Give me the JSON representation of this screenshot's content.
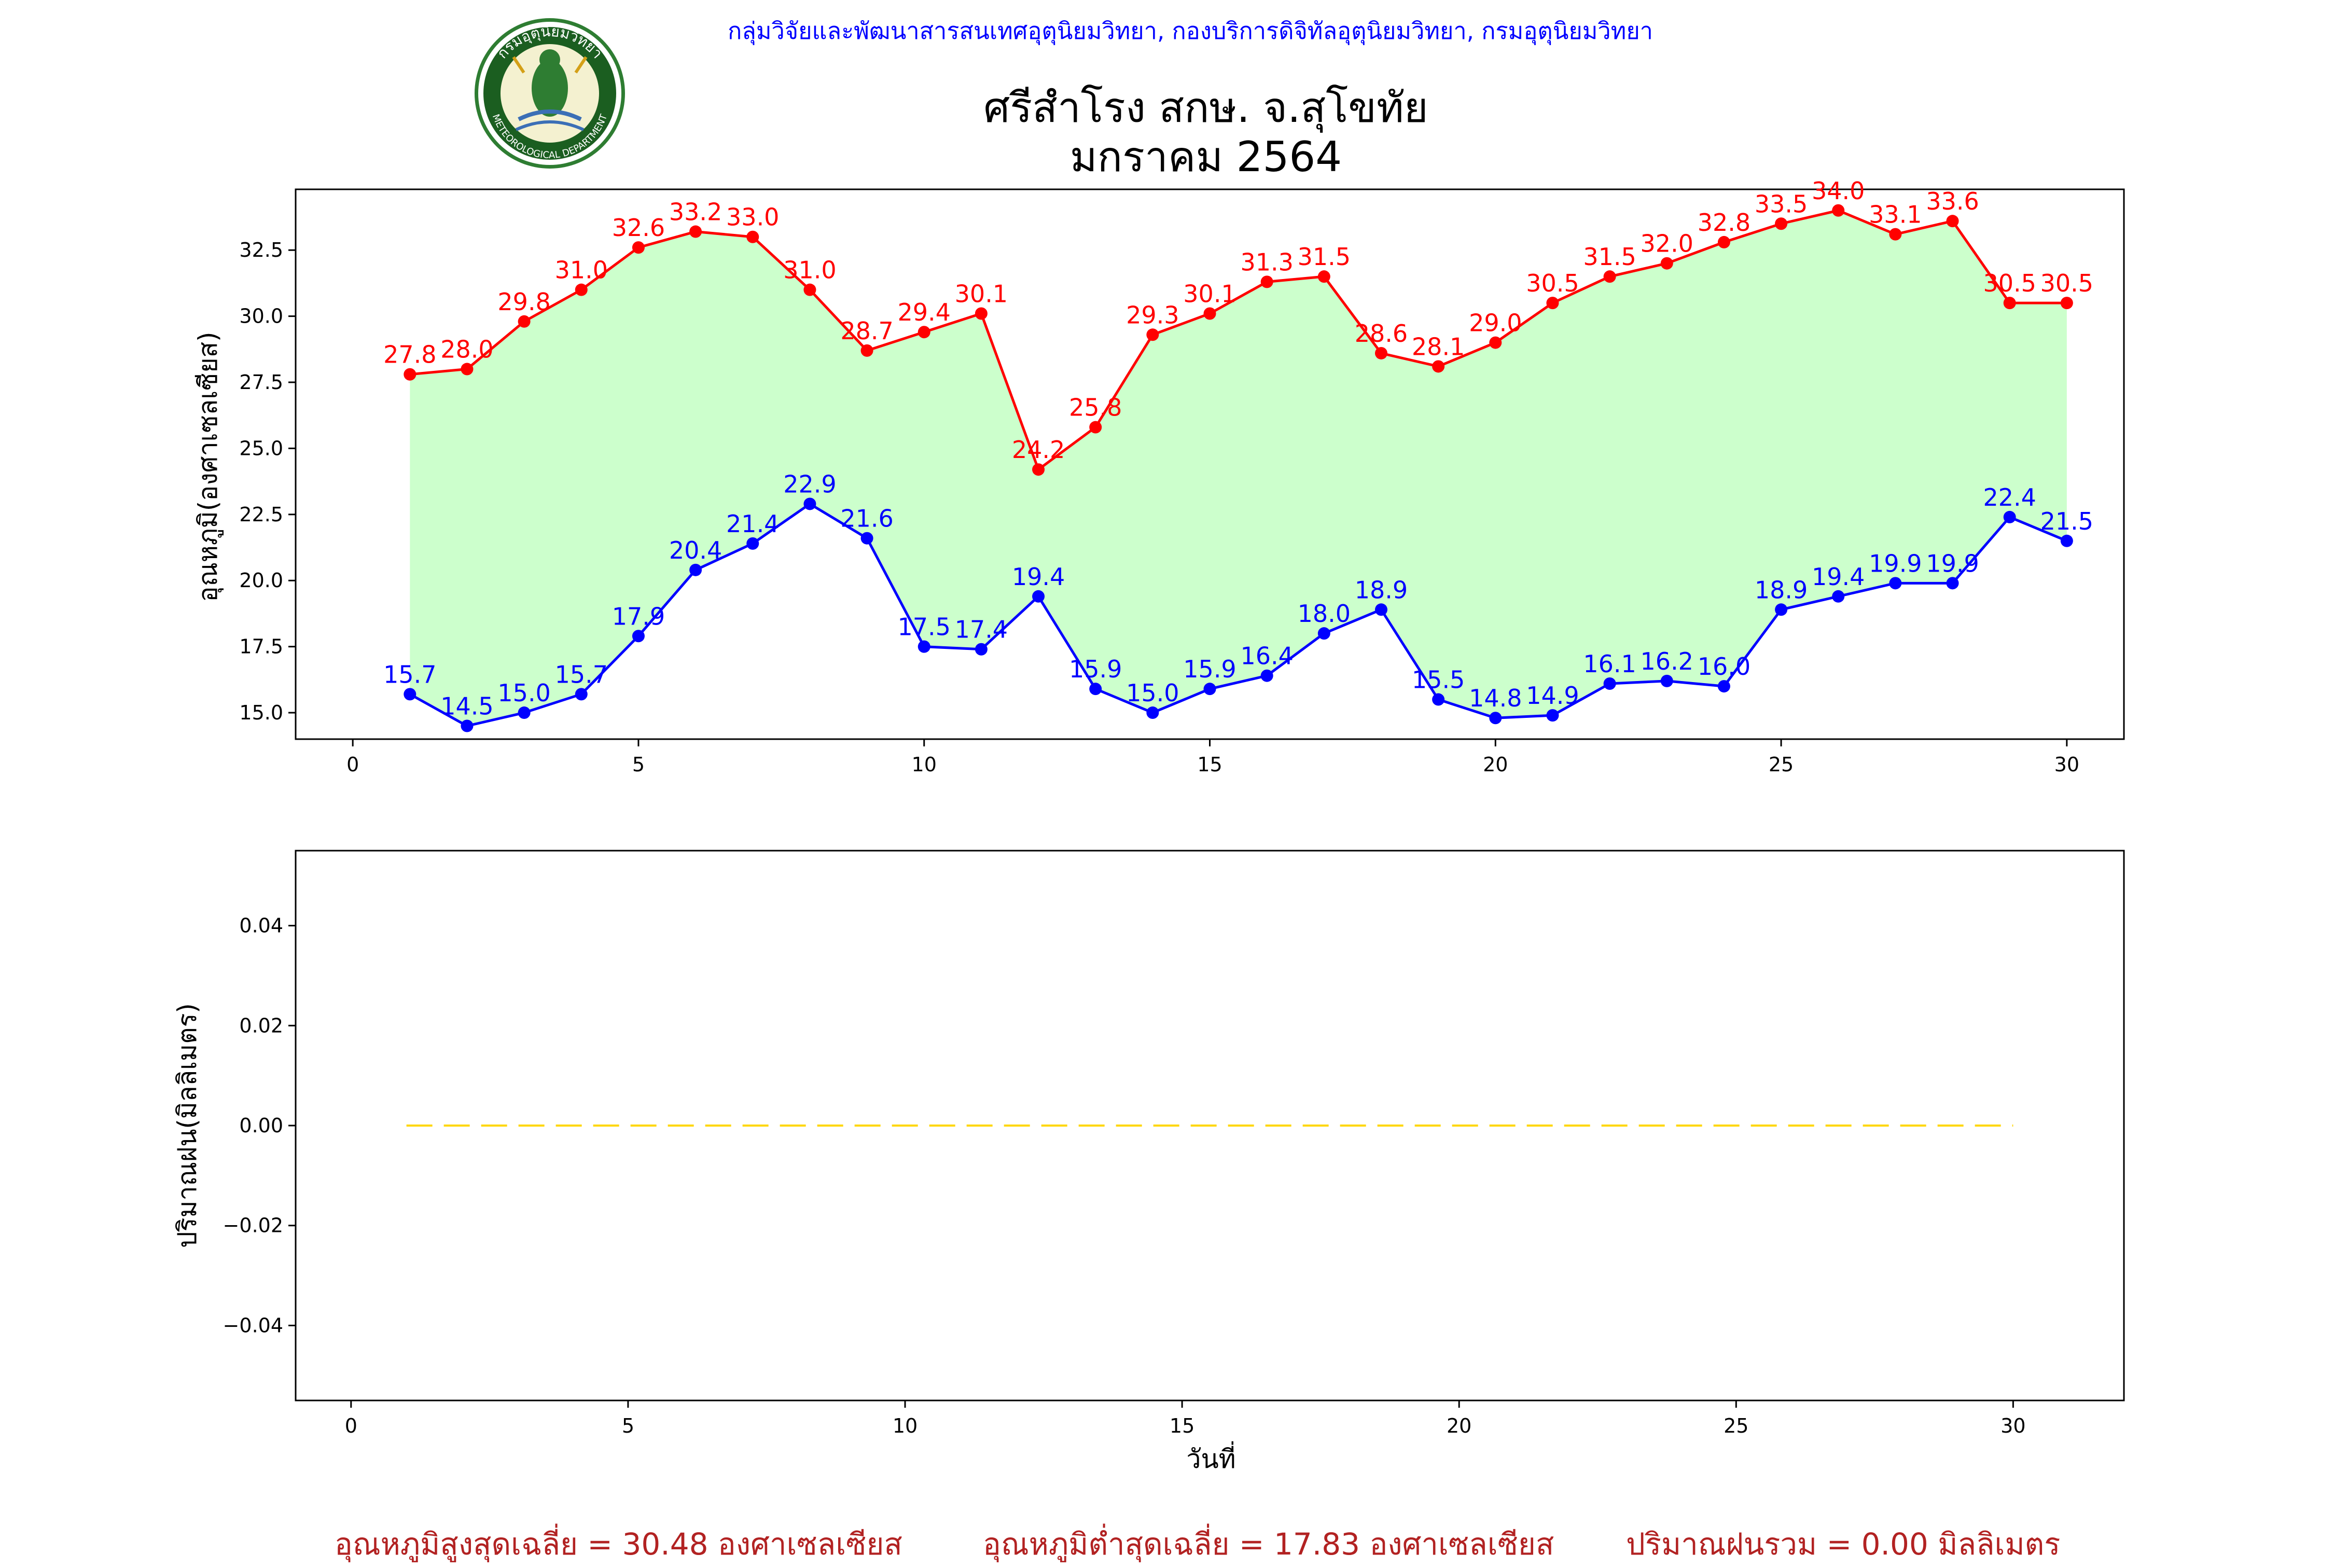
{
  "header": {
    "agency": "กลุ่มวิจัยและพัฒนาสารสนเทศอุตุนิยมวิทยา, กองบริการดิจิทัลอุตุนิยมวิทยา, กรมอุตุนิยมวิทยา",
    "title_line1": "ศรีสำโรง สกษ. จ.สุโขทัย",
    "title_line2": "มกราคม 2564",
    "logo_text_top": "กรมอุตุนิยมวิทยา",
    "logo_text_bottom": "METEOROLOGICAL DEPARTMENT"
  },
  "colors": {
    "max_line": "#ff0000",
    "min_line": "#0000ff",
    "fill": "#ccffcc",
    "rain_line": "#ffd700",
    "stat_text": "#b22222",
    "agency_text": "#0000ff"
  },
  "chart_data": [
    {
      "type": "line",
      "ylabel": "อุณหภูมิ(องศาเซลเซียส)",
      "xlabel": "",
      "xlim": [
        -1,
        31
      ],
      "ylim": [
        14.0,
        34.8
      ],
      "xticks": [
        0,
        5,
        10,
        15,
        20,
        25,
        30
      ],
      "yticks": [
        15.0,
        17.5,
        20.0,
        22.5,
        25.0,
        27.5,
        30.0,
        32.5
      ],
      "fill_between": true,
      "x": [
        1,
        2,
        3,
        4,
        5,
        6,
        7,
        8,
        9,
        10,
        11,
        12,
        13,
        14,
        15,
        16,
        17,
        18,
        19,
        20,
        21,
        22,
        23,
        24,
        25,
        26,
        27,
        28,
        29,
        30
      ],
      "series": [
        {
          "name": "max",
          "values": [
            27.8,
            28.0,
            29.8,
            31.0,
            32.6,
            33.2,
            33.0,
            31.0,
            28.7,
            29.4,
            30.1,
            24.2,
            25.8,
            29.3,
            30.1,
            31.3,
            31.5,
            28.6,
            28.1,
            29.0,
            30.5,
            31.5,
            32.0,
            32.8,
            33.5,
            34.0,
            33.1,
            33.6,
            30.5,
            30.5
          ]
        },
        {
          "name": "min",
          "values": [
            15.7,
            14.5,
            15.0,
            15.7,
            17.9,
            20.4,
            21.4,
            22.9,
            21.6,
            17.5,
            17.4,
            19.4,
            15.9,
            15.0,
            15.9,
            16.4,
            18.0,
            18.9,
            15.5,
            14.8,
            14.9,
            16.1,
            16.2,
            16.0,
            18.9,
            19.4,
            19.9,
            19.9,
            22.4,
            21.5
          ]
        }
      ]
    },
    {
      "type": "line",
      "ylabel": "ปริมาณฝน(มิลลิเมตร)",
      "xlabel": "วันที่",
      "xlim": [
        -1,
        32
      ],
      "ylim": [
        -0.055,
        0.055
      ],
      "xticks": [
        0,
        5,
        10,
        15,
        20,
        25,
        30
      ],
      "yticks": [
        -0.04,
        -0.02,
        0.0,
        0.02,
        0.04
      ],
      "line_style": "dashed",
      "x": [
        1,
        2,
        3,
        4,
        5,
        6,
        7,
        8,
        9,
        10,
        11,
        12,
        13,
        14,
        15,
        16,
        17,
        18,
        19,
        20,
        21,
        22,
        23,
        24,
        25,
        26,
        27,
        28,
        29,
        30
      ],
      "series": [
        {
          "name": "rain",
          "values": [
            0,
            0,
            0,
            0,
            0,
            0,
            0,
            0,
            0,
            0,
            0,
            0,
            0,
            0,
            0,
            0,
            0,
            0,
            0,
            0,
            0,
            0,
            0,
            0,
            0,
            0,
            0,
            0,
            0,
            0
          ]
        }
      ]
    }
  ],
  "stats": {
    "avg_max": "อุณหภูมิสูงสุดเฉลี่ย = 30.48 องศาเซลเซียส",
    "avg_min": "อุณหภูมิต่ำสุดเฉลี่ย = 17.83 องศาเซลเซียส",
    "total_rain": "ปริมาณฝนรวม = 0.00 มิลลิเมตร"
  }
}
